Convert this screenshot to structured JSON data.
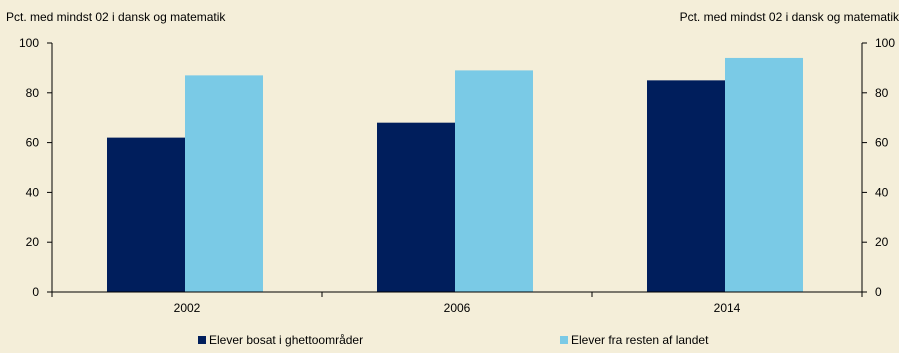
{
  "chart_data": {
    "type": "bar",
    "ylabel_left": "Pct. med mindst 02 i dansk og matematik",
    "ylabel_right": "Pct. med mindst 02 i dansk og matematik",
    "categories": [
      "2002",
      "2006",
      "2014"
    ],
    "ylim": [
      0,
      100
    ],
    "yticks": [
      "0",
      "20",
      "40",
      "60",
      "80",
      "100"
    ],
    "series": [
      {
        "name": "Elever bosat i ghettoområder",
        "color": "#001E5C",
        "values": [
          62,
          68,
          85
        ]
      },
      {
        "name": "Elever fra resten af landet",
        "color": "#7ACAE6",
        "values": [
          87,
          89,
          94
        ]
      }
    ],
    "grid": false,
    "legend_position": "bottom"
  }
}
